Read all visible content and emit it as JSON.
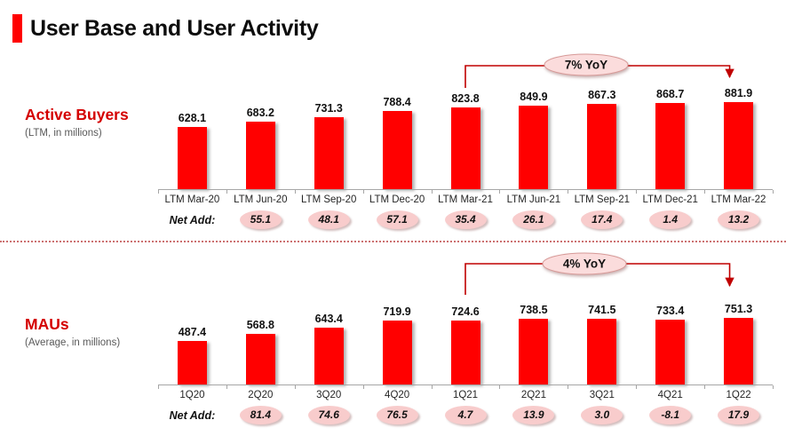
{
  "header": {
    "title": "User Base and User Activity"
  },
  "colors": {
    "bar": "#FF0000",
    "accent": "#FF0000",
    "arrow": "#C00000",
    "ellipse_fill": "#FBDCDC",
    "ellipse_stroke": "#D79A98",
    "netadd_fill": "#F8CCCC",
    "axis": "#A6A6A6",
    "section_title": "#D40000",
    "subtitle_gray": "#595959"
  },
  "chart_data": [
    {
      "type": "bar",
      "title": "Active Buyers",
      "subtitle": "(LTM, in millions)",
      "categories": [
        "LTM Mar-20",
        "LTM Jun-20",
        "LTM Sep-20",
        "LTM Dec-20",
        "LTM Mar-21",
        "LTM Jun-21",
        "LTM Sep-21",
        "LTM Dec-21",
        "LTM Mar-22"
      ],
      "values": [
        628.1,
        683.2,
        731.3,
        788.4,
        823.8,
        849.9,
        867.3,
        868.7,
        881.9
      ],
      "net_add_label": "Net Add:",
      "net_adds": [
        "",
        "55.1",
        "48.1",
        "57.1",
        "35.4",
        "26.1",
        "17.4",
        "1.4",
        "13.2"
      ],
      "annotation": {
        "label": "7% YoY",
        "from_category": "LTM Mar-21",
        "to_category": "LTM Mar-22",
        "from_index": 4,
        "to_index": 8
      },
      "ylim": [
        0,
        950
      ],
      "grid": false,
      "legend": false
    },
    {
      "type": "bar",
      "title": "MAUs",
      "subtitle": "(Average, in millions)",
      "categories": [
        "1Q20",
        "2Q20",
        "3Q20",
        "4Q20",
        "1Q21",
        "2Q21",
        "3Q21",
        "4Q21",
        "1Q22"
      ],
      "values": [
        487.4,
        568.8,
        643.4,
        719.9,
        724.6,
        738.5,
        741.5,
        733.4,
        751.3
      ],
      "net_add_label": "Net Add:",
      "net_adds": [
        "",
        "81.4",
        "74.6",
        "76.5",
        "4.7",
        "13.9",
        "3.0",
        "-8.1",
        "17.9"
      ],
      "annotation": {
        "label": "4% YoY",
        "from_category": "1Q21",
        "to_category": "1Q22",
        "from_index": 4,
        "to_index": 8
      },
      "ylim": [
        0,
        800
      ],
      "grid": false,
      "legend": false
    }
  ]
}
